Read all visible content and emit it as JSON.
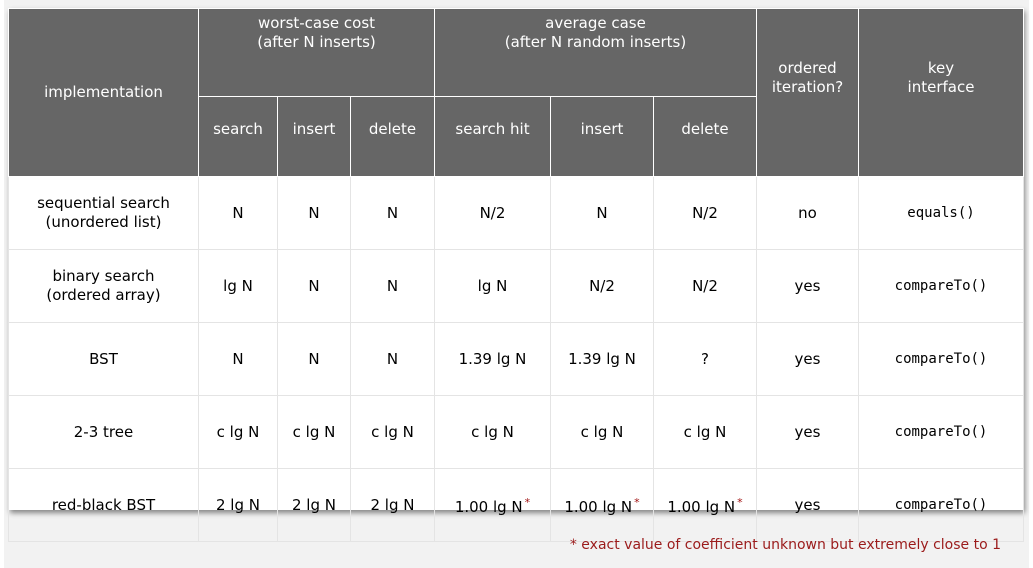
{
  "headers": {
    "implementation": "implementation",
    "worst_case": [
      "worst-case cost",
      "(after N inserts)"
    ],
    "average_case": [
      "average case",
      "(after N random inserts)"
    ],
    "ordered_iteration": [
      "ordered",
      "iteration?"
    ],
    "key_interface": [
      "key",
      "interface"
    ],
    "sub": [
      "search",
      "insert",
      "delete",
      "search hit",
      "insert",
      "delete"
    ]
  },
  "rows": [
    {
      "impl": [
        "sequential search",
        "(unordered list)"
      ],
      "wc": [
        "N",
        "N",
        "N"
      ],
      "avg": [
        "N/2",
        "N",
        "N/2"
      ],
      "avg_star": [
        false,
        false,
        false
      ],
      "ordered": "no",
      "key": "equals()"
    },
    {
      "impl": [
        "binary search",
        "(ordered array)"
      ],
      "wc": [
        "lg N",
        "N",
        "N"
      ],
      "avg": [
        "lg N",
        "N/2",
        "N/2"
      ],
      "avg_star": [
        false,
        false,
        false
      ],
      "ordered": "yes",
      "key": "compareTo()"
    },
    {
      "impl": [
        "BST"
      ],
      "wc": [
        "N",
        "N",
        "N"
      ],
      "avg": [
        "1.39 lg N",
        "1.39 lg N",
        "?"
      ],
      "avg_star": [
        false,
        false,
        false
      ],
      "ordered": "yes",
      "key": "compareTo()"
    },
    {
      "impl": [
        "2-3 tree"
      ],
      "wc": [
        "c lg N",
        "c lg N",
        "c lg N"
      ],
      "avg": [
        "c lg N",
        "c lg N",
        "c lg N"
      ],
      "avg_star": [
        false,
        false,
        false
      ],
      "ordered": "yes",
      "key": "compareTo()"
    },
    {
      "impl": [
        "red-black BST"
      ],
      "wc": [
        "2 lg N",
        "2 lg N",
        "2 lg N"
      ],
      "avg": [
        "1.00 lg N",
        "1.00 lg N",
        "1.00 lg N"
      ],
      "avg_star": [
        true,
        true,
        true
      ],
      "ordered": "yes",
      "key": "compareTo()"
    }
  ],
  "star_symbol": "*",
  "footnote": "* exact value of coefficient unknown but extremely close to 1",
  "colors": {
    "header_bg": "#666666",
    "footnote": "#9b1b1b",
    "star": "#a11212"
  }
}
